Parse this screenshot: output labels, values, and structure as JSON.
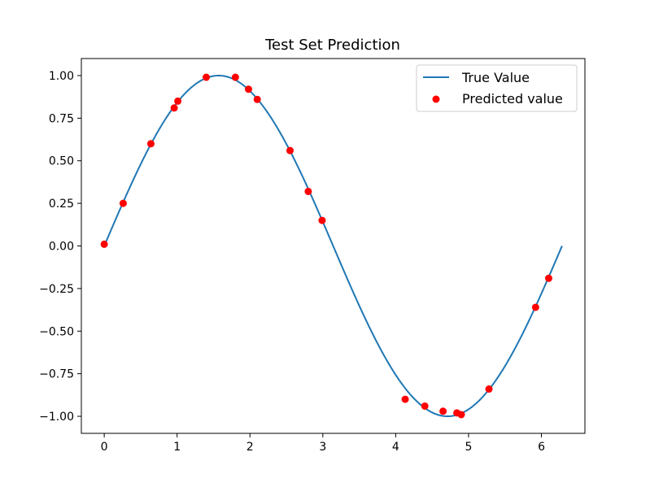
{
  "chart_data": {
    "type": "line+scatter",
    "title": "Test Set Prediction",
    "xlabel": "",
    "ylabel": "",
    "xlim": [
      -0.314,
      6.597
    ],
    "ylim": [
      -1.1,
      1.1
    ],
    "x_ticks": [
      0,
      1,
      2,
      3,
      4,
      5,
      6
    ],
    "x_tick_labels": [
      "0",
      "1",
      "2",
      "3",
      "4",
      "5",
      "6"
    ],
    "y_ticks": [
      1.0,
      0.75,
      0.5,
      0.25,
      0.0,
      -0.25,
      -0.5,
      -0.75,
      -1.0
    ],
    "y_tick_labels": [
      "1.00",
      "0.75",
      "0.50",
      "0.25",
      "0.00",
      "−0.25",
      "−0.50",
      "−0.75",
      "−1.00"
    ],
    "grid": false,
    "legend_position": "top-right",
    "series": [
      {
        "name": "True Value",
        "kind": "line",
        "color": "#1f77b4",
        "function": "sin(x)",
        "x_range": [
          0,
          6.283
        ]
      },
      {
        "name": "Predicted value",
        "kind": "scatter",
        "color": "#ff0000",
        "points": [
          {
            "x": 0.0,
            "y": 0.01
          },
          {
            "x": 0.26,
            "y": 0.25
          },
          {
            "x": 0.64,
            "y": 0.6
          },
          {
            "x": 0.96,
            "y": 0.81
          },
          {
            "x": 1.01,
            "y": 0.85
          },
          {
            "x": 1.4,
            "y": 0.99
          },
          {
            "x": 1.8,
            "y": 0.99
          },
          {
            "x": 1.98,
            "y": 0.92
          },
          {
            "x": 2.1,
            "y": 0.86
          },
          {
            "x": 2.55,
            "y": 0.56
          },
          {
            "x": 2.8,
            "y": 0.32
          },
          {
            "x": 2.99,
            "y": 0.15
          },
          {
            "x": 4.13,
            "y": -0.9
          },
          {
            "x": 4.4,
            "y": -0.94
          },
          {
            "x": 4.65,
            "y": -0.97
          },
          {
            "x": 4.84,
            "y": -0.98
          },
          {
            "x": 4.9,
            "y": -0.99
          },
          {
            "x": 5.28,
            "y": -0.84
          },
          {
            "x": 5.92,
            "y": -0.36
          },
          {
            "x": 6.1,
            "y": -0.19
          }
        ]
      }
    ]
  }
}
